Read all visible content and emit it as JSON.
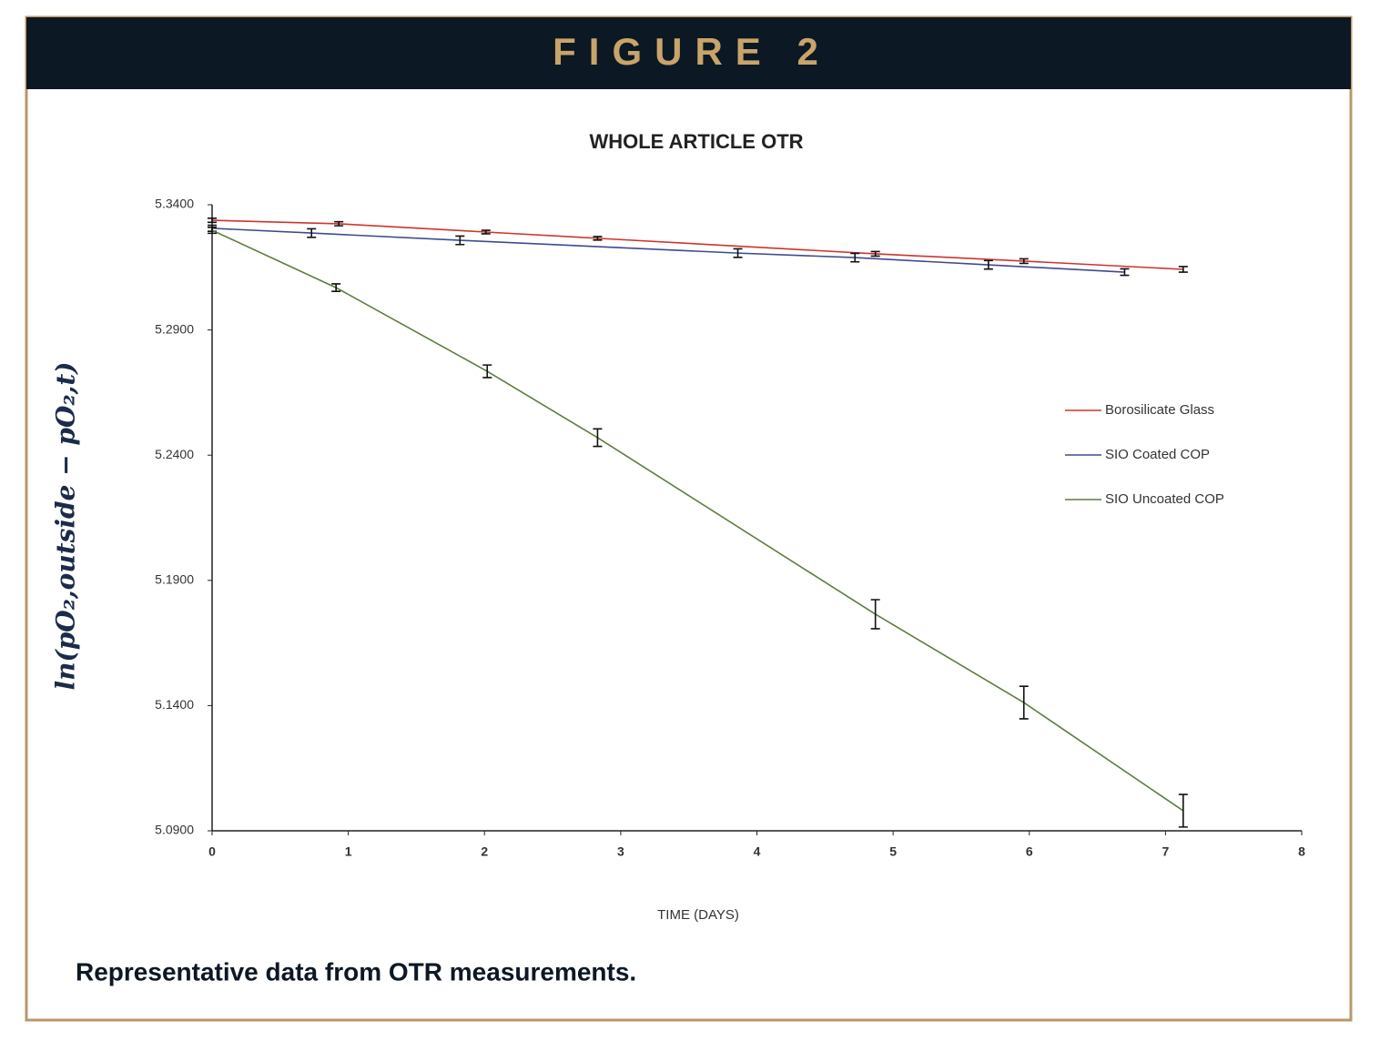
{
  "header": {
    "title": "FIGURE 2"
  },
  "chart_data": {
    "type": "line",
    "title": "WHOLE ARTICLE OTR",
    "x_label": "TIME (DAYS)",
    "y_label": "ln(pO₂,outside − pO₂,t)",
    "xlim": [
      0,
      8
    ],
    "xticks": [
      0,
      1,
      2,
      3,
      4,
      5,
      6,
      7,
      8
    ],
    "ylim": [
      5.09,
      5.34
    ],
    "yticks": [
      {
        "value": 5.09,
        "label": "5.0900"
      },
      {
        "value": 5.14,
        "label": "5.1400"
      },
      {
        "value": 5.19,
        "label": "5.1900"
      },
      {
        "value": 5.24,
        "label": "5.2400"
      },
      {
        "value": 5.29,
        "label": "5.2900"
      },
      {
        "value": 5.34,
        "label": "5.3400"
      }
    ],
    "legend": "right",
    "series": [
      {
        "name": "Borosilicate Glass",
        "color": "#d0342c",
        "x": [
          0,
          0.93,
          2.01,
          2.83,
          4.87,
          5.96,
          7.13
        ],
        "values": [
          5.3338,
          5.3324,
          5.3291,
          5.3266,
          5.3204,
          5.3175,
          5.3142
        ],
        "errors": [
          0.0008,
          0.0008,
          0.0007,
          0.0007,
          0.0009,
          0.0009,
          0.0011
        ]
      },
      {
        "name": "SIO Coated COP",
        "color": "#3d4b8e",
        "x": [
          0,
          0.73,
          1.82,
          3.86,
          4.72,
          5.7,
          6.7
        ],
        "values": [
          5.3306,
          5.3287,
          5.3258,
          5.3207,
          5.3189,
          5.316,
          5.3131
        ],
        "errors": [
          0.0012,
          0.0017,
          0.0017,
          0.0017,
          0.0017,
          0.0017,
          0.0013
        ]
      },
      {
        "name": "SIO Uncoated COP",
        "color": "#5e7d3c",
        "x": [
          0,
          0.91,
          2.02,
          2.83,
          4.87,
          5.96,
          7.13
        ],
        "values": [
          5.3298,
          5.3069,
          5.2735,
          5.247,
          5.1765,
          5.1412,
          5.098
        ],
        "errors": [
          0.0012,
          0.0015,
          0.0025,
          0.0035,
          0.0058,
          0.0065,
          0.0065
        ]
      }
    ]
  },
  "caption": "Representative data from OTR measurements."
}
